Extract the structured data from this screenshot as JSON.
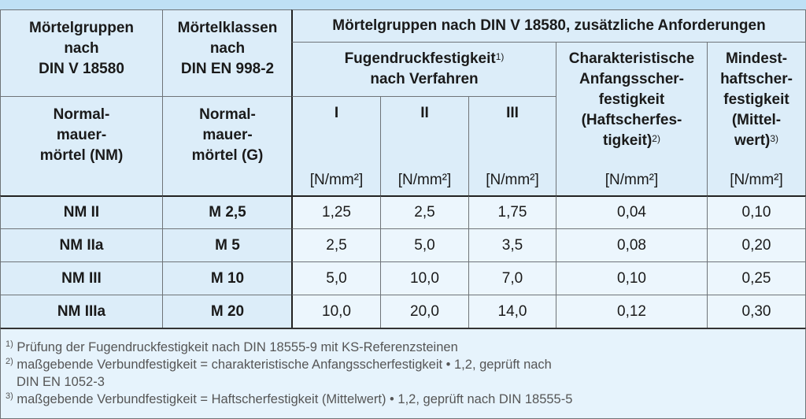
{
  "header": {
    "col1": [
      "Mörtelgruppen",
      "nach",
      "DIN V 18580"
    ],
    "col2": [
      "Mörtelklassen",
      "nach",
      "DIN EN 998-2"
    ],
    "span_title": "Mörtelgruppen nach DIN V 18580, zusätzliche Anforderungen",
    "fugen": [
      "Fugendruckfestigkeit",
      "nach Verfahren"
    ],
    "fugen_note": "1)",
    "char": [
      "Charakteristische",
      "Anfangsscher-",
      "festigkeit",
      "(Haftscherfes-",
      "tigkeit)"
    ],
    "char_note": "2)",
    "mind": [
      "Mindest-",
      "haftscher-",
      "festigkeit",
      "(Mittel-",
      "wert)"
    ],
    "mind_note": "3)",
    "col1_sub": [
      "Normal-",
      "mauer-",
      "mörtel (NM)"
    ],
    "col2_sub": [
      "Normal-",
      "mauer-",
      "mörtel (G)"
    ],
    "methods": [
      "I",
      "II",
      "III"
    ],
    "unit": "[N/mm²]"
  },
  "rows": [
    {
      "group": "NM II",
      "class": "M 2,5",
      "v1": "1,25",
      "v2": "2,5",
      "v3": "1,75",
      "char": "0,04",
      "mind": "0,10"
    },
    {
      "group": "NM IIa",
      "class": "M 5",
      "v1": "2,5",
      "v2": "5,0",
      "v3": "3,5",
      "char": "0,08",
      "mind": "0,20"
    },
    {
      "group": "NM III",
      "class": "M 10",
      "v1": "5,0",
      "v2": "10,0",
      "v3": "7,0",
      "char": "0,10",
      "mind": "0,25"
    },
    {
      "group": "NM IIIa",
      "class": "M 20",
      "v1": "10,0",
      "v2": "20,0",
      "v3": "14,0",
      "char": "0,12",
      "mind": "0,30"
    }
  ],
  "footnotes": [
    {
      "mark": "1)",
      "text": "Prüfung der Fugendruckfestigkeit nach DIN 18555-9 mit KS-Referenzsteinen"
    },
    {
      "mark": "2)",
      "text": "maßgebende Verbundfestigkeit = charakteristische Anfangsscherfestigkeit • 1,2, geprüft nach",
      "cont": "DIN EN 1052-3"
    },
    {
      "mark": "3)",
      "text": "maßgebende Verbundfestigkeit = Haftscherfestigkeit (Mittelwert) • 1,2, geprüft nach DIN 18555-5"
    }
  ]
}
